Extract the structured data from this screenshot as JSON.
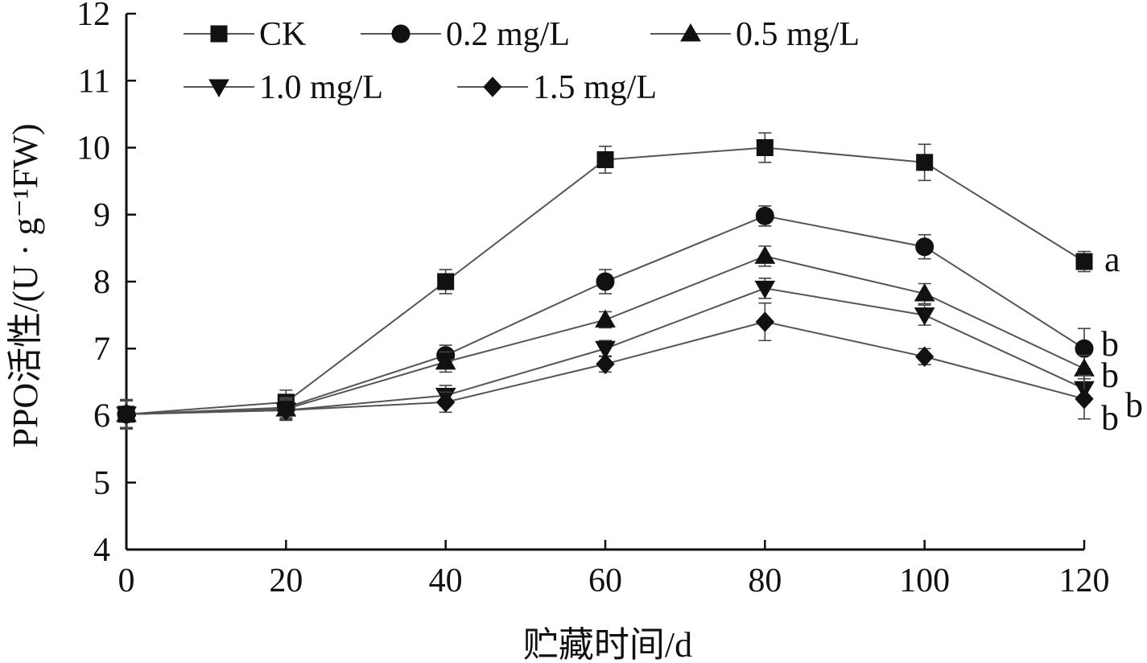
{
  "chart_data": {
    "type": "line",
    "x": [
      0,
      20,
      40,
      60,
      80,
      100,
      120
    ],
    "xlabel": "贮藏时间/d",
    "ylabel": "PPO活性/(U · g⁻¹FW)",
    "xlim": [
      0,
      120
    ],
    "ylim": [
      4,
      12
    ],
    "xticks": [
      "0",
      "20",
      "40",
      "60",
      "80",
      "100",
      "120"
    ],
    "yticks": [
      "4",
      "5",
      "6",
      "7",
      "8",
      "9",
      "10",
      "11",
      "12"
    ],
    "grid": false,
    "legend_position": "top-left",
    "series": [
      {
        "name": "CK",
        "marker": "square",
        "values": [
          6.02,
          6.2,
          8.0,
          9.82,
          10.0,
          9.78,
          8.3
        ],
        "errors": [
          0.22,
          0.18,
          0.18,
          0.2,
          0.22,
          0.27,
          0.15
        ],
        "significance": "a"
      },
      {
        "name": "0.2 mg/L",
        "marker": "circle",
        "values": [
          6.02,
          6.12,
          6.9,
          8.0,
          8.98,
          8.52,
          7.0
        ],
        "errors": [
          0.2,
          0.15,
          0.15,
          0.18,
          0.15,
          0.18,
          0.3
        ],
        "significance": "b"
      },
      {
        "name": "0.5 mg/L",
        "marker": "triangle-up",
        "values": [
          6.02,
          6.1,
          6.8,
          7.43,
          8.38,
          7.82,
          6.7
        ],
        "errors": [
          0.2,
          0.15,
          0.15,
          0.12,
          0.15,
          0.15,
          0.2
        ],
        "significance": "b"
      },
      {
        "name": "1.0 mg/L",
        "marker": "triangle-down",
        "values": [
          6.02,
          6.08,
          6.3,
          7.0,
          7.9,
          7.5,
          6.4
        ],
        "errors": [
          0.2,
          0.15,
          0.15,
          0.12,
          0.15,
          0.15,
          0.2
        ],
        "significance": "b"
      },
      {
        "name": "1.5 mg/L",
        "marker": "diamond",
        "values": [
          6.02,
          6.08,
          6.2,
          6.77,
          7.4,
          6.88,
          6.25
        ],
        "errors": [
          0.2,
          0.15,
          0.15,
          0.12,
          0.28,
          0.12,
          0.3
        ],
        "significance": "b"
      }
    ]
  },
  "colors": {
    "line": "#555555",
    "marker": "#111111",
    "axis": "#111111"
  }
}
